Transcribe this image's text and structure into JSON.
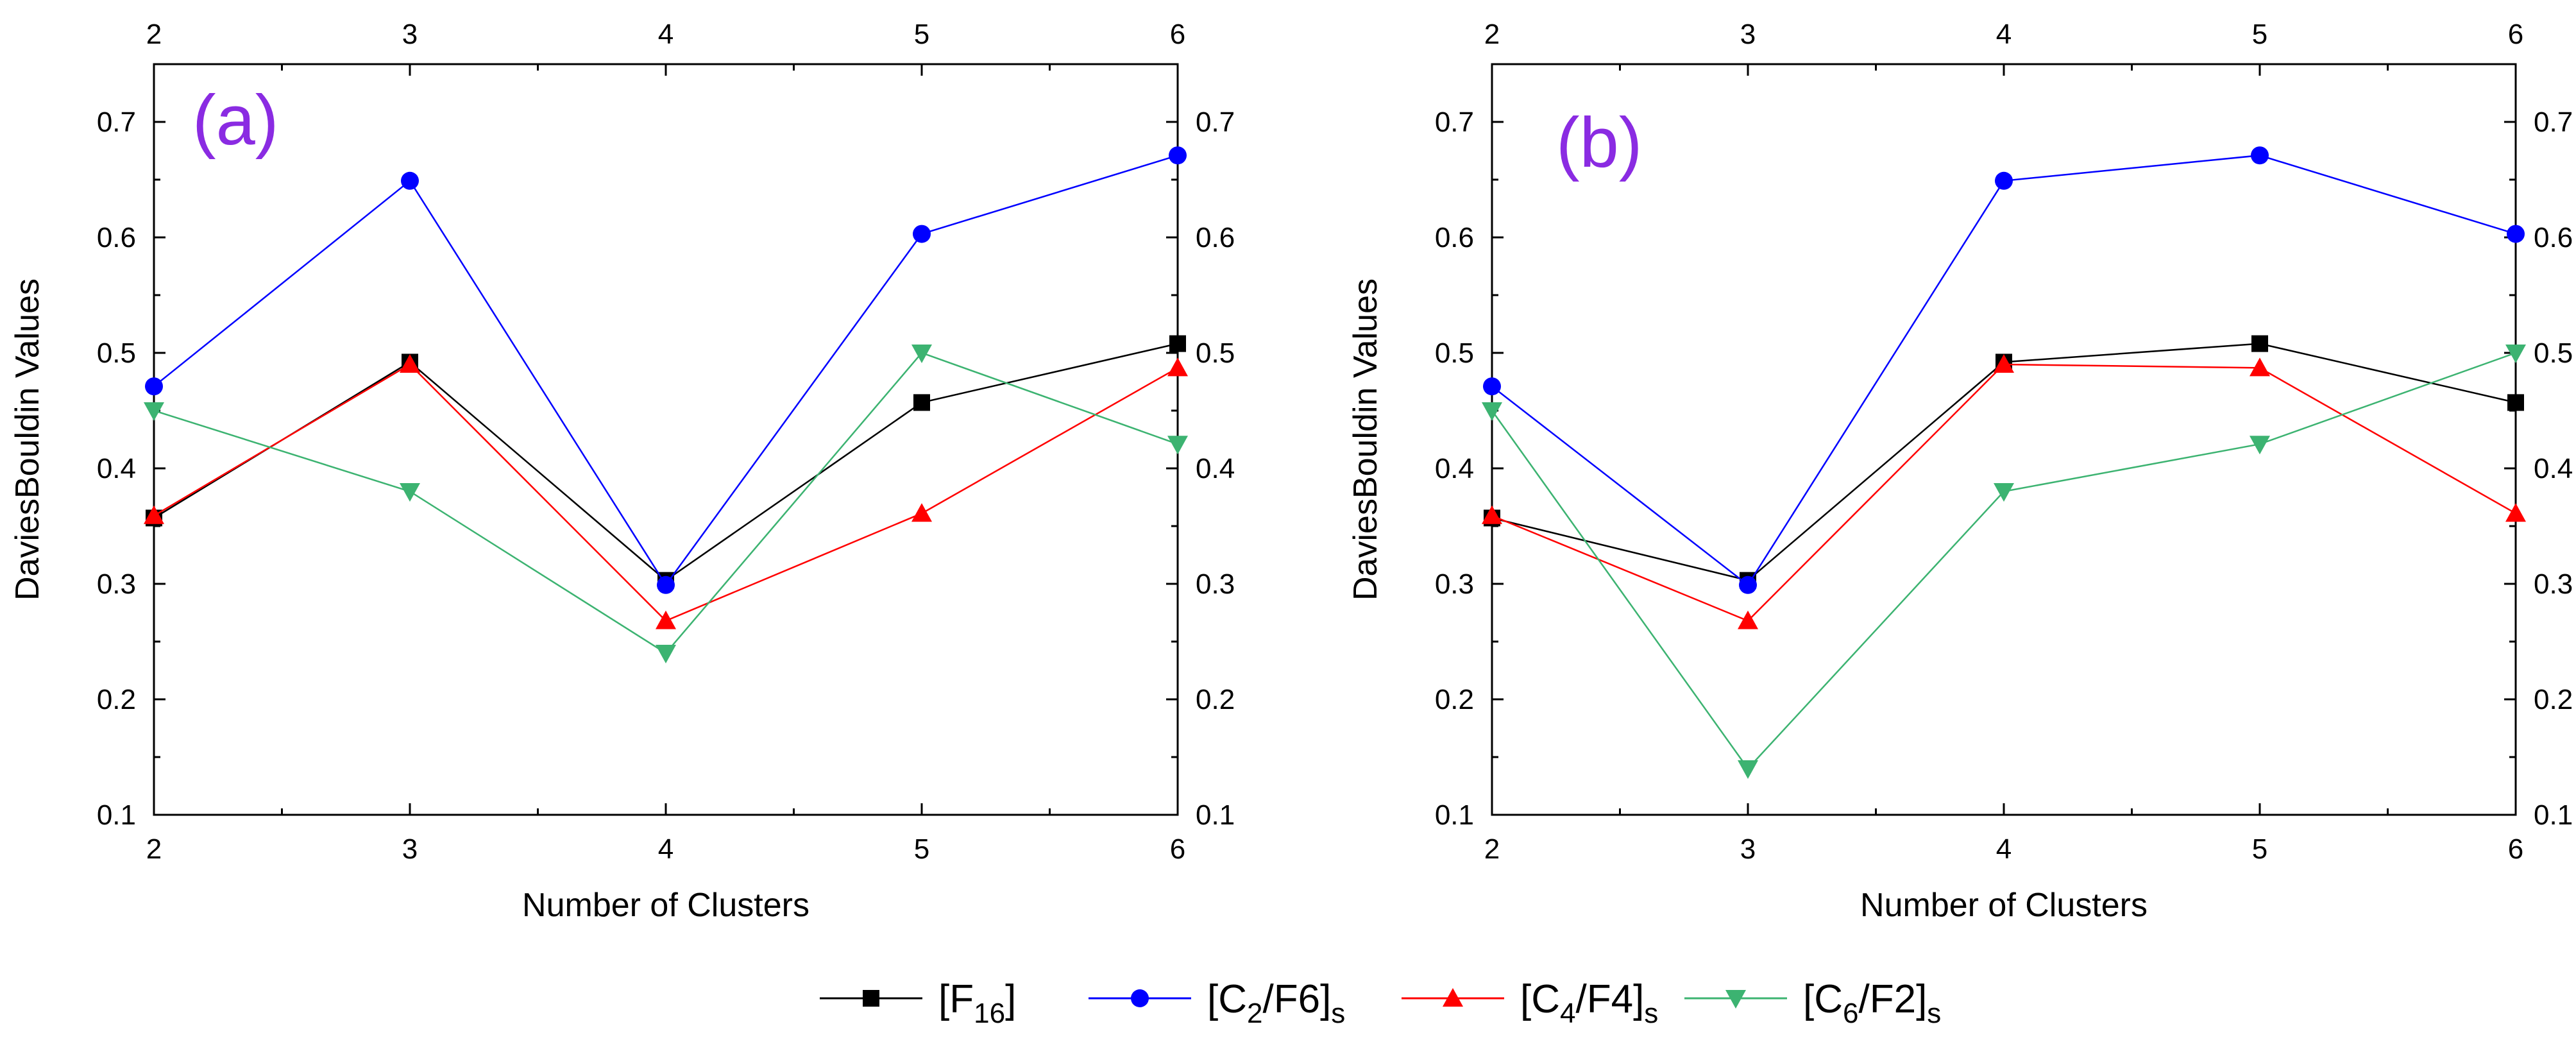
{
  "chart_data": [
    {
      "type": "line",
      "panel_label": "(a)",
      "title": "",
      "xlabel": "Number of Clusters",
      "ylabel": "DaviesBouldin Values",
      "x": [
        2,
        3,
        4,
        5,
        6
      ],
      "xlim": [
        2,
        6
      ],
      "ylim": [
        0.1,
        0.75
      ],
      "x_ticks": [
        "2",
        "3",
        "4",
        "5",
        "6"
      ],
      "y_ticks": [
        "0.1",
        "0.2",
        "0.3",
        "0.4",
        "0.5",
        "0.6",
        "0.7"
      ],
      "grid": false,
      "series": [
        {
          "name": "[F16]",
          "values": [
            0.357,
            0.492,
            0.303,
            0.457,
            0.508
          ]
        },
        {
          "name": "[C2/F6]s",
          "values": [
            0.471,
            0.649,
            0.299,
            0.603,
            0.671
          ]
        },
        {
          "name": "[C4/F4]s",
          "values": [
            0.359,
            0.49,
            0.268,
            0.361,
            0.487
          ]
        },
        {
          "name": "[C6/F2]s",
          "values": [
            0.45,
            0.38,
            0.24,
            0.5,
            0.421
          ]
        }
      ]
    },
    {
      "type": "line",
      "panel_label": "(b)",
      "title": "",
      "xlabel": "Number of Clusters",
      "ylabel": "DaviesBouldin Values",
      "x": [
        2,
        3,
        4,
        5,
        6
      ],
      "xlim": [
        2,
        6
      ],
      "ylim": [
        0.1,
        0.75
      ],
      "x_ticks": [
        "2",
        "3",
        "4",
        "5",
        "6"
      ],
      "y_ticks": [
        "0.1",
        "0.2",
        "0.3",
        "0.4",
        "0.5",
        "0.6",
        "0.7"
      ],
      "grid": false,
      "series": [
        {
          "name": "[F16]",
          "values": [
            0.357,
            0.303,
            0.492,
            0.508,
            0.457
          ]
        },
        {
          "name": "[C2/F6]s",
          "values": [
            0.471,
            0.299,
            0.649,
            0.671,
            0.603
          ]
        },
        {
          "name": "[C4/F4]s",
          "values": [
            0.359,
            0.268,
            0.49,
            0.487,
            0.361
          ]
        },
        {
          "name": "[C6/F2]s",
          "values": [
            0.45,
            0.14,
            0.38,
            0.421,
            0.5
          ]
        }
      ]
    }
  ],
  "legend": {
    "placement": "bottom-center",
    "entries": [
      {
        "name": "[F16]",
        "base": "[F",
        "sub": "16",
        "tail": "]",
        "subtail": "",
        "color": "#000000",
        "marker": "square"
      },
      {
        "name": "[C2/F6]s",
        "base": "[C",
        "sub": "2",
        "tail": "/F6]",
        "subtail": "s",
        "color": "#0000ff",
        "marker": "circle"
      },
      {
        "name": "[C4/F4]s",
        "base": "[C",
        "sub": "4",
        "tail": "/F4]",
        "subtail": "s",
        "color": "#ff0000",
        "marker": "triangle-up"
      },
      {
        "name": "[C6/F2]s",
        "base": "[C",
        "sub": "6",
        "tail": "/F2]",
        "subtail": "s",
        "color": "#3cb371",
        "marker": "triangle-down"
      }
    ]
  },
  "colors": {
    "panel_label": "#8a2be2",
    "axis": "#000000"
  }
}
